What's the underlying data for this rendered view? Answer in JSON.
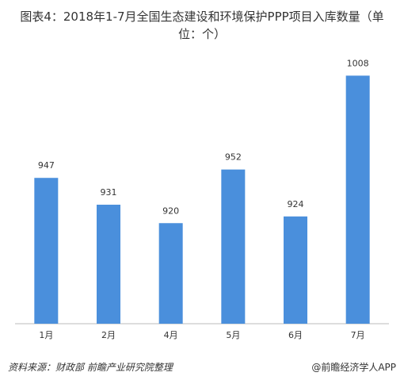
{
  "chart_data": {
    "type": "bar",
    "title": "图表4：2018年1-7月全国生态建设和环境保护PPP项目入库数量（单位：个）",
    "categories": [
      "1月",
      "2月",
      "4月",
      "5月",
      "6月",
      "7月"
    ],
    "values": [
      947,
      931,
      920,
      952,
      924,
      1008
    ],
    "color": "#4a8fdc",
    "ylim": [
      860,
      1020
    ]
  },
  "footer": {
    "source": "资料来源：财政部 前瞻产业研究院整理",
    "brand": "@前瞻经济学人APP"
  }
}
